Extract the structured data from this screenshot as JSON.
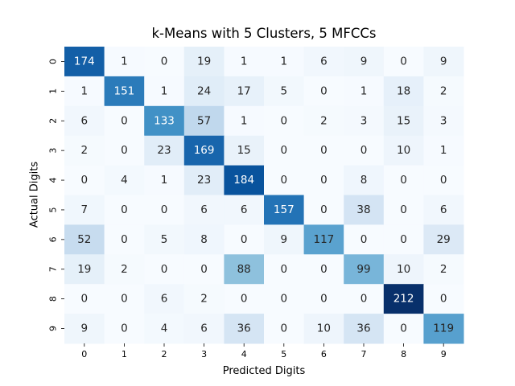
{
  "chart_data": {
    "type": "heatmap",
    "title": "k-Means with 5 Clusters, 5 MFCCs",
    "xlabel": "Predicted Digits",
    "ylabel": "Actual Digits",
    "x_categories": [
      "0",
      "1",
      "2",
      "3",
      "4",
      "5",
      "6",
      "7",
      "8",
      "9"
    ],
    "y_categories": [
      "0",
      "1",
      "2",
      "3",
      "4",
      "5",
      "6",
      "7",
      "8",
      "9"
    ],
    "matrix": [
      [
        174,
        1,
        0,
        19,
        1,
        1,
        6,
        9,
        0,
        9
      ],
      [
        1,
        151,
        1,
        24,
        17,
        5,
        0,
        1,
        18,
        2
      ],
      [
        6,
        0,
        133,
        57,
        1,
        0,
        2,
        3,
        15,
        3
      ],
      [
        2,
        0,
        23,
        169,
        15,
        0,
        0,
        0,
        10,
        1
      ],
      [
        0,
        4,
        1,
        23,
        184,
        0,
        0,
        8,
        0,
        0
      ],
      [
        7,
        0,
        0,
        6,
        6,
        157,
        0,
        38,
        0,
        6
      ],
      [
        52,
        0,
        5,
        8,
        0,
        9,
        117,
        0,
        0,
        29
      ],
      [
        19,
        2,
        0,
        0,
        88,
        0,
        0,
        99,
        10,
        2
      ],
      [
        0,
        0,
        6,
        2,
        0,
        0,
        0,
        0,
        212,
        0
      ],
      [
        9,
        0,
        4,
        6,
        36,
        0,
        10,
        36,
        0,
        119
      ]
    ],
    "value_range": [
      0,
      212
    ],
    "colormap": "Blues",
    "colorbar": false,
    "grid": false
  }
}
